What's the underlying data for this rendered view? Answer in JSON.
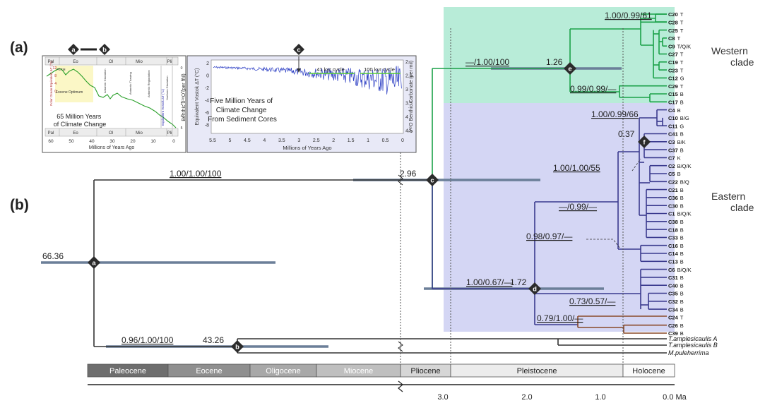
{
  "panel_labels": {
    "a": "(a)",
    "b": "(b)"
  },
  "colors": {
    "green_clade": "#1aa148",
    "green_bg": "#b8ecd8",
    "blue_clade": "#3a3a8e",
    "blue_bg": "#d4d6f4",
    "brown_clade": "#8a4a2a",
    "ci_bar": "#6b7f98",
    "stem": "#333333"
  },
  "clades": {
    "western": "Western\nclade",
    "eastern": "Eastern\nclade"
  },
  "nodes": {
    "a": {
      "label": "a",
      "age": "66.36",
      "support": "1.00/1.00/100"
    },
    "b": {
      "label": "b",
      "age": "43.26",
      "support": "0.96/1.00/100"
    },
    "c": {
      "label": "c",
      "age": "2.96"
    },
    "d": {
      "label": "d",
      "age": "1.72",
      "support": "1.00/0.67/—"
    },
    "e": {
      "label": "e",
      "age": "1.26",
      "support": "—/1.00/100"
    },
    "f": {
      "label": "f",
      "age": "0.37",
      "support": "1.00/1.00/55"
    }
  },
  "supports_other": {
    "western_top": "1.00/0.99/61",
    "western_low": "0.99/0.99/—",
    "eastern_top": "1.00/0.99/66",
    "eastern_mid": "—/0.99/—",
    "eastern_b": "0.98/0.97/—",
    "eastern_c": "0.73/0.57/—",
    "brown": "0.79/1.00/—"
  },
  "tips": [
    {
      "name": "C20",
      "code": "T"
    },
    {
      "name": "C28",
      "code": "T"
    },
    {
      "name": "C25",
      "code": "T"
    },
    {
      "name": "C8",
      "code": "T"
    },
    {
      "name": "C9",
      "code": "T/Q/K"
    },
    {
      "name": "C27",
      "code": "T"
    },
    {
      "name": "C19",
      "code": "T"
    },
    {
      "name": "C23",
      "code": "T"
    },
    {
      "name": "C12",
      "code": "G"
    },
    {
      "name": "C29",
      "code": "T"
    },
    {
      "name": "C15",
      "code": "B"
    },
    {
      "name": "C17",
      "code": "B"
    },
    {
      "name": "C4",
      "code": "B"
    },
    {
      "name": "C10",
      "code": "B/G"
    },
    {
      "name": "C11",
      "code": "G"
    },
    {
      "name": "C41",
      "code": "B"
    },
    {
      "name": "C3",
      "code": "B/K"
    },
    {
      "name": "C37",
      "code": "B"
    },
    {
      "name": "C7",
      "code": "K"
    },
    {
      "name": "C2",
      "code": "B/Q/K"
    },
    {
      "name": "C5",
      "code": "B"
    },
    {
      "name": "C22",
      "code": "B/Q"
    },
    {
      "name": "C21",
      "code": "B"
    },
    {
      "name": "C36",
      "code": "B"
    },
    {
      "name": "C30",
      "code": "B"
    },
    {
      "name": "C1",
      "code": "B/Q/K"
    },
    {
      "name": "C38",
      "code": "B"
    },
    {
      "name": "C18",
      "code": "B"
    },
    {
      "name": "C33",
      "code": "B"
    },
    {
      "name": "C16",
      "code": "B"
    },
    {
      "name": "C14",
      "code": "B"
    },
    {
      "name": "C13",
      "code": "B"
    },
    {
      "name": "C6",
      "code": "B/Q/K"
    },
    {
      "name": "C31",
      "code": "B"
    },
    {
      "name": "C40",
      "code": "B"
    },
    {
      "name": "C35",
      "code": "B"
    },
    {
      "name": "C32",
      "code": "B"
    },
    {
      "name": "C34",
      "code": "B"
    },
    {
      "name": "C24",
      "code": "T"
    },
    {
      "name": "C26",
      "code": "B"
    },
    {
      "name": "C39",
      "code": "B"
    }
  ],
  "outgroups": [
    "T.amplesicaulis A",
    "T.amplesicaulis B",
    "M.puleherrima"
  ],
  "epochs": [
    "Paleocene",
    "Eocene",
    "Oligocene",
    "Miocene",
    "Pliocene",
    "Pleistocene",
    "Holocene"
  ],
  "axis": {
    "ticks": [
      "3.0",
      "2.0",
      "1.0",
      "0.0 Ma"
    ]
  },
  "inset_left": {
    "title": "65 Million Years\nof Climate Change",
    "epochs": [
      "Pal",
      "Eo",
      "Ol",
      "Mio",
      "Pli"
    ],
    "xticks": [
      "60",
      "50",
      "40",
      "30",
      "20",
      "10",
      "0"
    ],
    "xlabel": "Millions of Years Ago",
    "ylabel": "Benthic δ¹⁸O (per mil)",
    "yticks": [
      "0",
      "1",
      "2",
      "3",
      "4",
      "5"
    ],
    "left_ylabel": "Polar Ocean Equivalent ΔT (°C)",
    "left_yticks": [
      "12",
      "8",
      "4",
      "0"
    ],
    "right_ylabel": "Equivalent Vostok ΔT (°C)",
    "annotations": [
      "PETM",
      "Eocene\nOptimum",
      "Antarctic Glaciation",
      "Antarctic Thawing",
      "Antarctic Reglaciation",
      "Northern Glaciation"
    ],
    "markers": [
      "a",
      "b"
    ]
  },
  "inset_right": {
    "title": "Five Million Years of\nClimate Change\nFrom Sediment Cores",
    "xticks": [
      "5.5",
      "5",
      "4.5",
      "4",
      "3.5",
      "3",
      "2.5",
      "2",
      "1.5",
      "1",
      "0.5",
      "0"
    ],
    "xlabel": "Millions of Years Ago",
    "yticks_left": [
      "2",
      "0",
      "-2",
      "-4",
      "-6",
      "-8"
    ],
    "ylabel_left": "Equivalent Vostok ΔT (°C)",
    "yticks_right": [
      "2",
      "2.5",
      "3",
      "3.5",
      "4",
      "4.5"
    ],
    "ylabel_right": "δ¹⁸O Benthic Carbonate (per mil)",
    "cycles": [
      "41 kyr cycle",
      "100 kyr cycle"
    ],
    "marker": "c"
  }
}
